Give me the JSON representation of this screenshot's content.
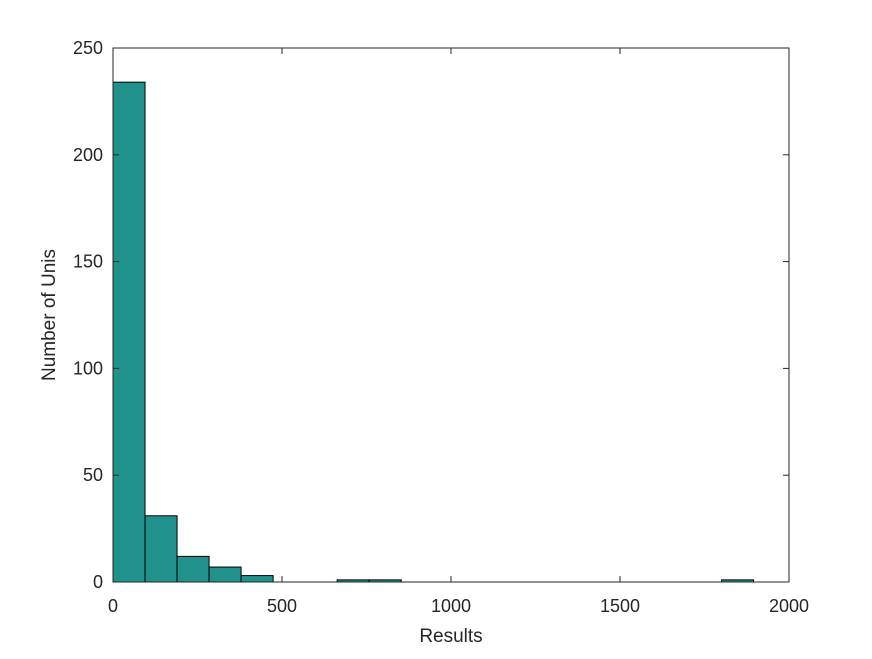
{
  "chart_data": {
    "type": "histogram",
    "title": "",
    "xlabel": "Results",
    "ylabel": "Number of Unis",
    "xlim": [
      0,
      2000
    ],
    "ylim": [
      0,
      250
    ],
    "xticks": [
      0,
      500,
      1000,
      1500,
      2000
    ],
    "yticks": [
      0,
      50,
      100,
      150,
      200,
      250
    ],
    "bin_width": 94.75,
    "bin_start": 0,
    "counts": [
      234,
      31,
      12,
      7,
      3,
      0,
      0,
      1,
      1,
      0,
      0,
      0,
      0,
      0,
      0,
      0,
      0,
      0,
      0,
      1
    ],
    "grid": false,
    "bar_color": "#21918c",
    "edge_color": "#000000"
  }
}
